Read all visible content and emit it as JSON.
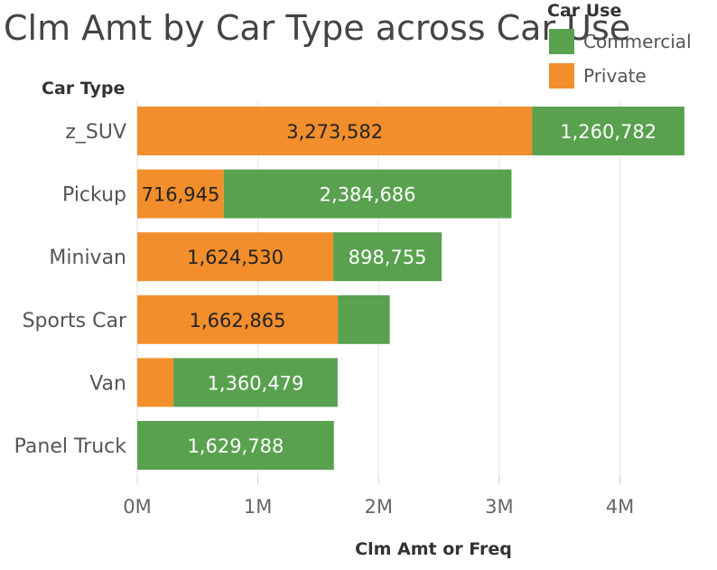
{
  "chart_data": {
    "type": "bar",
    "orientation": "horizontal",
    "stacked": true,
    "title": "Clm Amt by Car Type across Car Use",
    "ylabel": "Car Type",
    "xlabel": "Clm Amt or Freq",
    "categories": [
      "z_SUV",
      "Pickup",
      "Minivan",
      "Sports Car",
      "Van",
      "Panel Truck"
    ],
    "series": [
      {
        "name": "Private",
        "color": "#f28e2b",
        "values": [
          3273582,
          716945,
          1624530,
          1662865,
          300000,
          0
        ],
        "labels": [
          "3,273,582",
          "716,945",
          "1,624,530",
          "1,662,865",
          "",
          ""
        ]
      },
      {
        "name": "Commercial",
        "color": "#59a14f",
        "values": [
          1260782,
          2384686,
          898755,
          430000,
          1360479,
          1629788
        ],
        "labels": [
          "1,260,782",
          "2,384,686",
          "898,755",
          "",
          "1,360,479",
          "1,629,788"
        ]
      }
    ],
    "xlim": [
      0,
      4700000
    ],
    "xticks": [
      0,
      1000000,
      2000000,
      3000000,
      4000000
    ],
    "xtick_labels": [
      "0M",
      "1M",
      "2M",
      "3M",
      "4M"
    ],
    "grid": "vertical",
    "legend": {
      "title": "Car Use",
      "placement": "top-right",
      "items": [
        {
          "name": "Commercial",
          "color": "#59a14f"
        },
        {
          "name": "Private",
          "color": "#f28e2b"
        }
      ]
    }
  }
}
